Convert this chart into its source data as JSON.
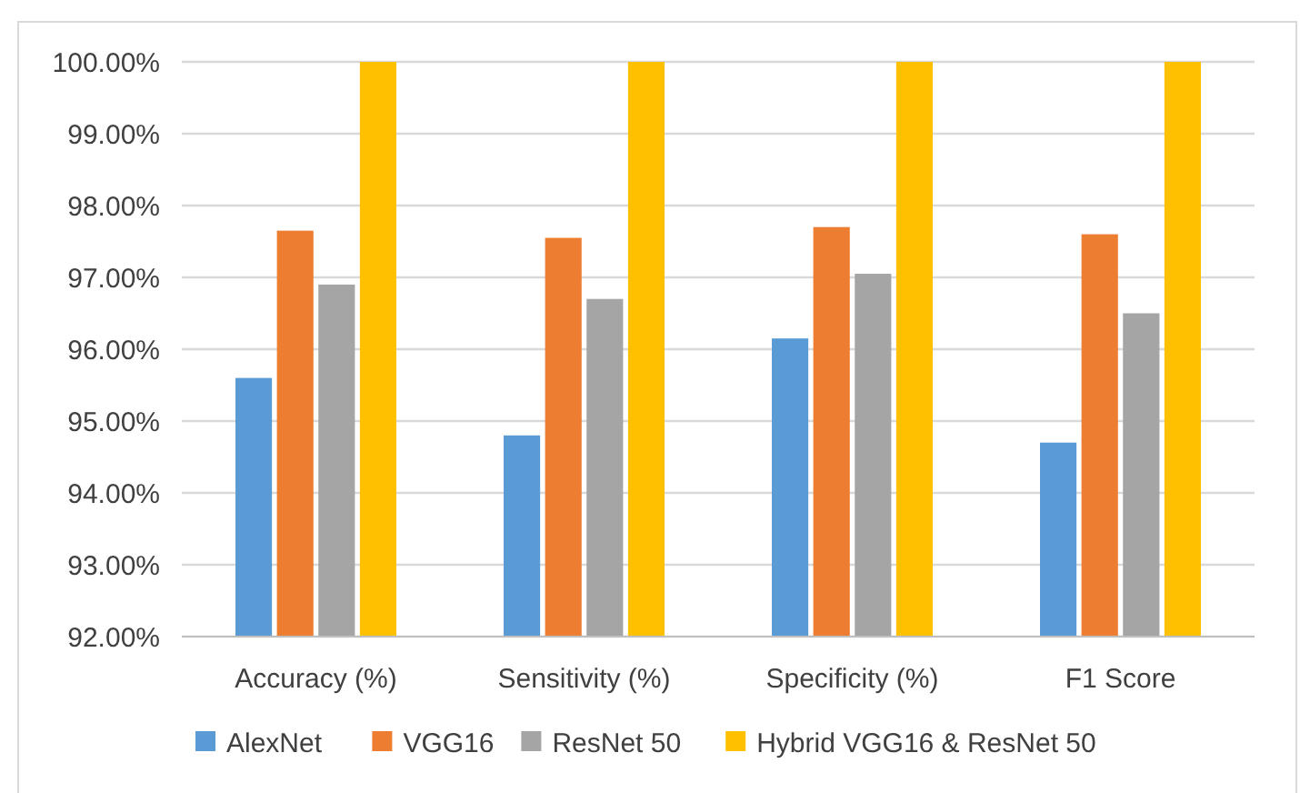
{
  "chart_data": {
    "type": "bar",
    "categories": [
      "Accuracy (%)",
      "Sensitivity (%)",
      "Specificity (%)",
      "F1 Score"
    ],
    "series": [
      {
        "name": "AlexNet",
        "color": "#5b9bd5",
        "values": [
          95.6,
          94.8,
          96.15,
          94.7
        ]
      },
      {
        "name": "VGG16",
        "color": "#ed7d31",
        "values": [
          97.65,
          97.55,
          97.7,
          97.6
        ]
      },
      {
        "name": "ResNet 50",
        "color": "#a5a5a5",
        "values": [
          96.9,
          96.7,
          97.05,
          96.5
        ]
      },
      {
        "name": "Hybrid VGG16 & ResNet 50",
        "color": "#ffc000",
        "values": [
          100,
          100,
          100,
          100
        ]
      }
    ],
    "ylim": [
      92,
      100
    ],
    "yticks": [
      {
        "value": 92,
        "label": "92.00%"
      },
      {
        "value": 93,
        "label": "93.00%"
      },
      {
        "value": 94,
        "label": "94.00%"
      },
      {
        "value": 95,
        "label": "95.00%"
      },
      {
        "value": 96,
        "label": "96.00%"
      },
      {
        "value": 97,
        "label": "97.00%"
      },
      {
        "value": 98,
        "label": "98.00%"
      },
      {
        "value": 99,
        "label": "99.00%"
      },
      {
        "value": 100,
        "label": "100.00%"
      }
    ],
    "grid": "y",
    "legend": "bottom"
  }
}
